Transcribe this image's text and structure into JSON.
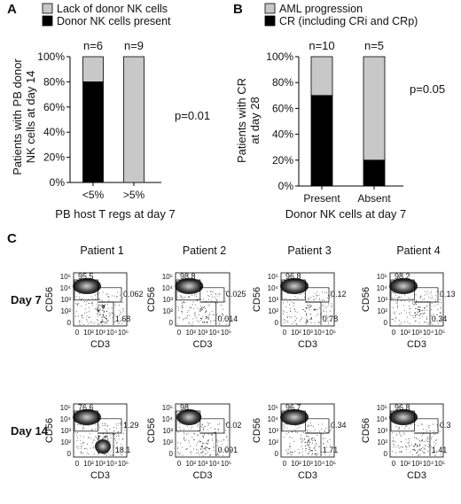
{
  "panels": [
    {
      "letter": "A",
      "legend": [
        {
          "label": "Lack of donor NK cells",
          "color": "#c8c8c8"
        },
        {
          "label": "Donor NK cells present",
          "color": "#000000"
        }
      ],
      "ylabel_lines": [
        "Patients with PB donor",
        "NK cells at day 14"
      ],
      "xlabel": "PB host T regs at day 7",
      "pvalue": "p=0.01"
    },
    {
      "letter": "B",
      "legend": [
        {
          "label": "AML progression",
          "color": "#c8c8c8"
        },
        {
          "label": "CR (including CRi and CRp)",
          "color": "#000000"
        }
      ],
      "ylabel_lines": [
        "Patients with CR",
        "at day 28"
      ],
      "xlabel": "Donor NK cells at day 7",
      "pvalue": "p=0.05"
    }
  ],
  "chart_data": [
    {
      "type": "bar",
      "stacked": true,
      "categories": [
        "<5%",
        ">5%"
      ],
      "n_labels": [
        "n=6",
        "n=9"
      ],
      "series": [
        {
          "name": "Donor NK cells present",
          "color": "#000000",
          "values": [
            80,
            0
          ]
        },
        {
          "name": "Lack of donor NK cells",
          "color": "#c8c8c8",
          "values": [
            20,
            100
          ]
        }
      ],
      "yticks": [
        "0%",
        "20%",
        "40%",
        "60%",
        "80%",
        "100%"
      ],
      "ylim": [
        0,
        100
      ]
    },
    {
      "type": "bar",
      "stacked": true,
      "categories": [
        "Present",
        "Absent"
      ],
      "n_labels": [
        "n=10",
        "n=5"
      ],
      "series": [
        {
          "name": "CR (including CRi and CRp)",
          "color": "#000000",
          "values": [
            70,
            20
          ]
        },
        {
          "name": "AML progression",
          "color": "#c8c8c8",
          "values": [
            30,
            80
          ]
        }
      ],
      "yticks": [
        "0%",
        "20%",
        "40%",
        "60%",
        "80%",
        "100%"
      ],
      "ylim": [
        0,
        100
      ]
    }
  ],
  "flow": {
    "letter": "C",
    "patients": [
      "Patient 1",
      "Patient 2",
      "Patient 3",
      "Patient 4"
    ],
    "rows": [
      {
        "label": "Day 7",
        "plots": [
          {
            "top": "95.5",
            "mid": "0.062",
            "bot": "1.68"
          },
          {
            "top": "98.8",
            "mid": "0.025",
            "bot": "0.014"
          },
          {
            "top": "96.8",
            "mid": "0.12",
            "bot": "0.78"
          },
          {
            "top": "98.2",
            "mid": "0.13",
            "bot": "0.34"
          }
        ]
      },
      {
        "label": "Day 14",
        "plots": [
          {
            "top": "76.6",
            "mid": "1.29",
            "bot": "18.1"
          },
          {
            "top": "98",
            "mid": "0.02",
            "bot": "0.091"
          },
          {
            "top": "96.7",
            "mid": "0.34",
            "bot": "1.71"
          },
          {
            "top": "96.8",
            "mid": "0.3",
            "bot": "1.41"
          }
        ]
      }
    ],
    "x_axis_label": "CD3",
    "y_axis_label": "CD56",
    "x_ticks": [
      "0",
      "10²",
      "10³",
      "10⁴",
      "10⁵"
    ],
    "y_ticks": [
      "0",
      "10²",
      "10³",
      "10⁴",
      "10⁵"
    ]
  }
}
